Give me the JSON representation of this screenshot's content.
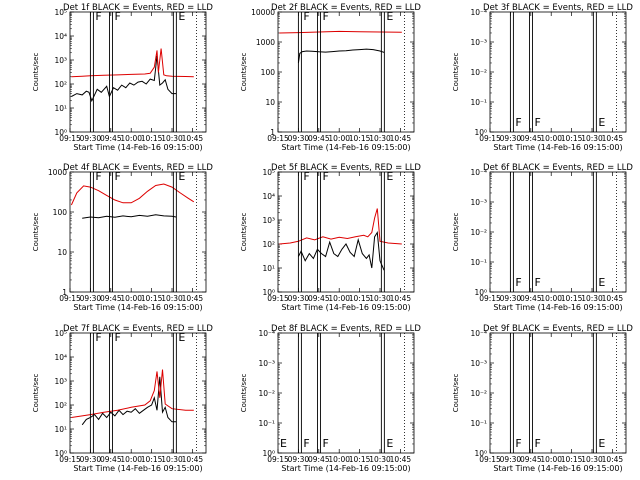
{
  "figure": {
    "xlabel": "Start Time (14-Feb-16 09:15:00)",
    "ylabel": "Counts/sec",
    "x_ticks": [
      "09:15",
      "09:30",
      "09:45",
      "10:00",
      "10:15",
      "10:30",
      "10:45"
    ],
    "x_range": [
      "09:15",
      "10:55"
    ],
    "colors": {
      "events": "#000000",
      "lld": "#dd0000",
      "frame": "#000000"
    }
  },
  "chart_data": [
    {
      "type": "line",
      "title": "Det 1f BLACK = Events, RED = LLD",
      "ylog": true,
      "ylim": [
        1,
        100000
      ],
      "y_ticks": [
        "10⁰",
        "10¹",
        "10²",
        "10³",
        "10⁴",
        "10⁵"
      ],
      "x_ticks": [
        "09:15",
        "09:30",
        "09:45",
        "10:00",
        "10:15",
        "10:30",
        "10:45"
      ],
      "markers": [
        {
          "x": "09:30",
          "label": "F"
        },
        {
          "x": "09:44",
          "label": "F"
        },
        {
          "x": "10:31",
          "label": "E"
        }
      ],
      "series": [
        {
          "color": "#000000",
          "x": [
            "09:16",
            "09:20",
            "09:24",
            "09:27",
            "09:29",
            "09:31",
            "09:35",
            "09:38",
            "09:42",
            "09:44",
            "09:47",
            "09:50",
            "09:53",
            "09:56",
            "09:59",
            "10:02",
            "10:05",
            "10:08",
            "10:11",
            "10:14",
            "10:17",
            "10:19",
            "10:21",
            "10:23",
            "10:25",
            "10:27",
            "10:30",
            "10:33"
          ],
          "y": [
            30,
            40,
            35,
            50,
            45,
            20,
            60,
            45,
            80,
            30,
            70,
            55,
            90,
            70,
            110,
            90,
            120,
            130,
            100,
            160,
            140,
            1500,
            90,
            110,
            150,
            60,
            40,
            40
          ]
        },
        {
          "color": "#dd0000",
          "x": [
            "09:16",
            "09:24",
            "09:30",
            "09:40",
            "09:50",
            "10:00",
            "10:10",
            "10:14",
            "10:17",
            "10:19",
            "10:20",
            "10:22",
            "10:24",
            "10:26",
            "10:30",
            "10:40",
            "10:46"
          ],
          "y": [
            200,
            210,
            220,
            230,
            240,
            250,
            260,
            280,
            500,
            2500,
            300,
            3000,
            240,
            220,
            210,
            205,
            200
          ]
        }
      ]
    },
    {
      "type": "line",
      "title": "Det 2f BLACK = Events, RED = LLD",
      "ylog": true,
      "ylim": [
        1,
        10000
      ],
      "y_ticks": [
        "1",
        "10",
        "100",
        "1000",
        "10000"
      ],
      "x_ticks": [
        "09:15",
        "09:30",
        "09:45",
        "10:00",
        "10:15",
        "10:30",
        "10:45"
      ],
      "markers": [
        {
          "x": "09:30",
          "label": "F"
        },
        {
          "x": "09:44",
          "label": "F"
        },
        {
          "x": "10:31",
          "label": "E"
        }
      ],
      "series": [
        {
          "color": "#000000",
          "x": [
            "09:30",
            "09:31",
            "09:33",
            "09:36",
            "09:40",
            "09:45",
            "09:50",
            "09:55",
            "10:00",
            "10:05",
            "10:10",
            "10:15",
            "10:20",
            "10:25",
            "10:30",
            "10:33"
          ],
          "y": [
            200,
            420,
            480,
            500,
            490,
            470,
            460,
            480,
            500,
            510,
            540,
            560,
            580,
            560,
            500,
            450
          ]
        },
        {
          "color": "#dd0000",
          "x": [
            "09:16",
            "09:30",
            "09:45",
            "10:00",
            "10:15",
            "10:30",
            "10:46"
          ],
          "y": [
            2000,
            2050,
            2150,
            2250,
            2200,
            2150,
            2100
          ]
        }
      ]
    },
    {
      "type": "line",
      "title": "Det 3f BLACK = Events, RED = LLD",
      "ylog": true,
      "ylim": [
        1,
        0.0001
      ],
      "y_ticks": [
        "10⁰",
        "10⁻¹",
        "10⁻²",
        "10⁻³",
        "10⁻⁴"
      ],
      "x_ticks": [
        "09:15",
        "09:30",
        "09:45",
        "10:00",
        "10:15",
        "10:30",
        "10:45"
      ],
      "markers": [
        {
          "x": "09:30",
          "label": "F"
        },
        {
          "x": "09:44",
          "label": "F"
        },
        {
          "x": "10:31",
          "label": "E"
        }
      ],
      "series": []
    },
    {
      "type": "line",
      "title": "Det 4f BLACK = Events, RED = LLD",
      "ylog": true,
      "ylim": [
        1,
        1000
      ],
      "y_ticks": [
        "1",
        "10",
        "100",
        "1000"
      ],
      "x_ticks": [
        "09:15",
        "09:30",
        "09:45",
        "10:00",
        "10:15",
        "10:30",
        "10:45"
      ],
      "markers": [
        {
          "x": "09:30",
          "label": "F"
        },
        {
          "x": "09:44",
          "label": "F"
        },
        {
          "x": "10:31",
          "label": "E"
        }
      ],
      "series": [
        {
          "color": "#000000",
          "x": [
            "09:24",
            "09:30",
            "09:36",
            "09:42",
            "09:48",
            "09:54",
            "10:00",
            "10:06",
            "10:12",
            "10:18",
            "10:24",
            "10:30",
            "10:33"
          ],
          "y": [
            70,
            75,
            72,
            78,
            74,
            80,
            76,
            82,
            78,
            85,
            80,
            78,
            75
          ]
        },
        {
          "color": "#dd0000",
          "x": [
            "09:16",
            "09:20",
            "09:25",
            "09:30",
            "09:36",
            "09:42",
            "09:48",
            "09:54",
            "10:00",
            "10:06",
            "10:12",
            "10:18",
            "10:24",
            "10:30",
            "10:36",
            "10:42",
            "10:46"
          ],
          "y": [
            150,
            300,
            450,
            420,
            340,
            260,
            200,
            170,
            170,
            220,
            330,
            460,
            500,
            420,
            300,
            220,
            180
          ]
        }
      ]
    },
    {
      "type": "line",
      "title": "Det 5f BLACK = Events, RED = LLD",
      "ylog": true,
      "ylim": [
        1,
        100000
      ],
      "y_ticks": [
        "10⁰",
        "10¹",
        "10²",
        "10³",
        "10⁴",
        "10⁵"
      ],
      "x_ticks": [
        "09:15",
        "09:30",
        "09:45",
        "10:00",
        "10:15",
        "10:30",
        "10:45"
      ],
      "markers": [
        {
          "x": "09:30",
          "label": "F"
        },
        {
          "x": "09:44",
          "label": "F"
        },
        {
          "x": "10:31",
          "label": "E"
        }
      ],
      "series": [
        {
          "color": "#000000",
          "x": [
            "09:30",
            "09:32",
            "09:35",
            "09:38",
            "09:41",
            "09:44",
            "09:47",
            "09:50",
            "09:53",
            "09:56",
            "09:59",
            "10:02",
            "10:05",
            "10:08",
            "10:11",
            "10:14",
            "10:17",
            "10:20",
            "10:22",
            "10:24",
            "10:26",
            "10:28",
            "10:30",
            "10:33"
          ],
          "y": [
            30,
            50,
            20,
            40,
            25,
            60,
            40,
            30,
            120,
            40,
            30,
            60,
            100,
            45,
            30,
            150,
            40,
            25,
            35,
            10,
            200,
            300,
            20,
            8
          ]
        },
        {
          "color": "#dd0000",
          "x": [
            "09:16",
            "09:24",
            "09:30",
            "09:36",
            "09:42",
            "09:48",
            "09:54",
            "10:00",
            "10:06",
            "10:12",
            "10:18",
            "10:21",
            "10:24",
            "10:26",
            "10:28",
            "10:30",
            "10:36",
            "10:46"
          ],
          "y": [
            100,
            110,
            130,
            180,
            150,
            200,
            160,
            190,
            170,
            200,
            230,
            200,
            300,
            1200,
            3000,
            130,
            110,
            100
          ]
        }
      ]
    },
    {
      "type": "line",
      "title": "Det 6f BLACK = Events, RED = LLD",
      "ylog": true,
      "ylim": [
        1,
        0.0001
      ],
      "y_ticks": [
        "10⁰",
        "10⁻¹",
        "10⁻²",
        "10⁻³",
        "10⁻⁴"
      ],
      "x_ticks": [
        "09:15",
        "09:30",
        "09:45",
        "10:00",
        "10:15",
        "10:30",
        "10:45"
      ],
      "markers": [
        {
          "x": "09:30",
          "label": "F"
        },
        {
          "x": "09:44",
          "label": "F"
        },
        {
          "x": "10:31",
          "label": "E"
        }
      ],
      "series": []
    },
    {
      "type": "line",
      "title": "Det 7f BLACK = Events, RED = LLD",
      "ylog": true,
      "ylim": [
        1,
        100000
      ],
      "y_ticks": [
        "10⁰",
        "10¹",
        "10²",
        "10³",
        "10⁴",
        "10⁵"
      ],
      "x_ticks": [
        "09:15",
        "09:30",
        "09:45",
        "10:00",
        "10:15",
        "10:30",
        "10:45"
      ],
      "markers": [
        {
          "x": "09:30",
          "label": "F"
        },
        {
          "x": "09:44",
          "label": "F"
        },
        {
          "x": "10:31",
          "label": "E"
        }
      ],
      "series": [
        {
          "color": "#000000",
          "x": [
            "09:24",
            "09:27",
            "09:30",
            "09:33",
            "09:36",
            "09:39",
            "09:42",
            "09:45",
            "09:48",
            "09:51",
            "09:54",
            "09:57",
            "10:00",
            "10:03",
            "10:06",
            "10:09",
            "10:12",
            "10:15",
            "10:17",
            "10:19",
            "10:21",
            "10:23",
            "10:25",
            "10:27",
            "10:30",
            "10:33"
          ],
          "y": [
            15,
            25,
            30,
            40,
            25,
            45,
            30,
            50,
            35,
            60,
            40,
            55,
            50,
            70,
            45,
            60,
            80,
            100,
            200,
            60,
            1500,
            50,
            80,
            30,
            20,
            20
          ]
        },
        {
          "color": "#dd0000",
          "x": [
            "09:16",
            "09:24",
            "09:30",
            "09:40",
            "09:50",
            "10:00",
            "10:10",
            "10:14",
            "10:17",
            "10:19",
            "10:21",
            "10:23",
            "10:25",
            "10:30",
            "10:40",
            "10:46"
          ],
          "y": [
            30,
            35,
            40,
            50,
            60,
            80,
            100,
            150,
            400,
            2500,
            200,
            3000,
            110,
            70,
            60,
            60
          ]
        }
      ]
    },
    {
      "type": "line",
      "title": "Det 8f BLACK = Events, RED = LLD",
      "ylog": true,
      "ylim": [
        1,
        0.0001
      ],
      "y_ticks": [
        "10⁰",
        "10⁻¹",
        "10⁻²",
        "10⁻³",
        "10⁻⁴"
      ],
      "x_ticks": [
        "09:15",
        "09:30",
        "09:45",
        "10:00",
        "10:15",
        "10:30",
        "10:45"
      ],
      "markers": [
        {
          "x": "09:15",
          "label": "E"
        },
        {
          "x": "09:30",
          "label": "F"
        },
        {
          "x": "09:44",
          "label": "F"
        },
        {
          "x": "10:31",
          "label": "E"
        }
      ],
      "series": []
    },
    {
      "type": "line",
      "title": "Det 9f BLACK = Events, RED = LLD",
      "ylog": true,
      "ylim": [
        1,
        0.0001
      ],
      "y_ticks": [
        "10⁰",
        "10⁻¹",
        "10⁻²",
        "10⁻³",
        "10⁻⁴"
      ],
      "x_ticks": [
        "09:15",
        "09:30",
        "09:45",
        "10:00",
        "10:15",
        "10:30",
        "10:45"
      ],
      "markers": [
        {
          "x": "09:30",
          "label": "F"
        },
        {
          "x": "09:44",
          "label": "F"
        },
        {
          "x": "10:31",
          "label": "E"
        }
      ],
      "series": []
    }
  ]
}
